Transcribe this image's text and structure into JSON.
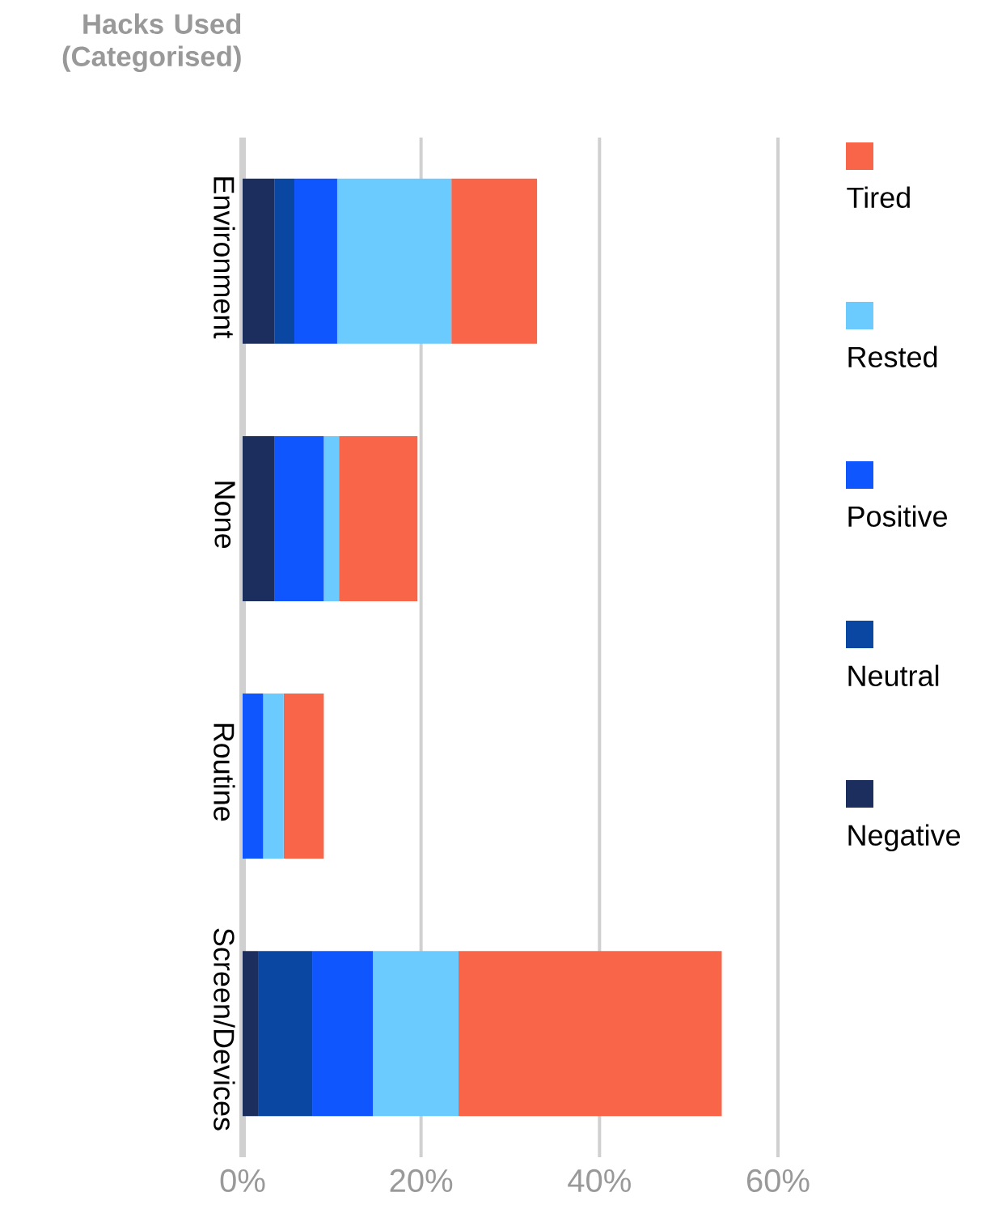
{
  "chart_data": {
    "type": "bar",
    "orientation": "horizontal",
    "stacked": true,
    "ylabel": "Hacks Used (Categorised)",
    "categories": [
      "Environment",
      "None",
      "Routine",
      "Screen/Devices"
    ],
    "series": [
      {
        "name": "Negative",
        "color": "#1c2e5e",
        "values": [
          3.6,
          3.6,
          0,
          1.8
        ]
      },
      {
        "name": "Neutral",
        "color": "#0a47a3",
        "values": [
          2.2,
          0,
          0,
          6.0
        ]
      },
      {
        "name": "Positive",
        "color": "#0f56ff",
        "values": [
          4.8,
          5.5,
          2.3,
          6.8
        ]
      },
      {
        "name": "Rested",
        "color": "#6ccbfe",
        "values": [
          12.8,
          1.7,
          2.3,
          9.6
        ]
      },
      {
        "name": "Tired",
        "color": "#f86549",
        "values": [
          9.6,
          8.8,
          4.5,
          29.5
        ]
      }
    ],
    "xlim": [
      0,
      60
    ],
    "xticks": [
      {
        "value": 0,
        "label": "0%"
      },
      {
        "value": 20,
        "label": "20%"
      },
      {
        "value": 40,
        "label": "40%"
      },
      {
        "value": 60,
        "label": "60%"
      }
    ],
    "grid": "x",
    "legend": "right"
  }
}
